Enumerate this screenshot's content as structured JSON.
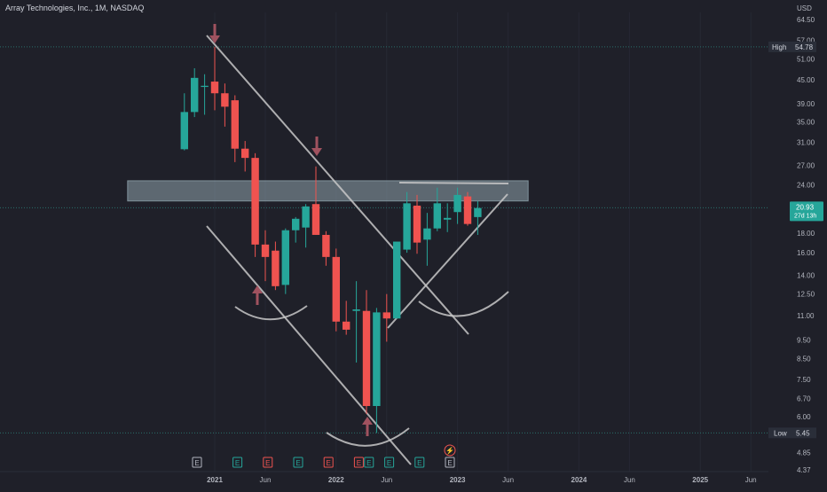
{
  "header": {
    "symbol_title": "Array Technologies, Inc., 1M, NASDAQ",
    "currency": "USD"
  },
  "colors": {
    "background": "#1f2029",
    "up": "#26a69a",
    "down": "#ef5350",
    "trendline": "#c8c8c8",
    "zone": "#8fa4ad",
    "arrow": "#a0525f",
    "price_tag": "#26a69a",
    "dashed_line": "#2a6d6a"
  },
  "chart_data": {
    "type": "candlestick",
    "scale": "log",
    "ylim": [
      4.37,
      64.5
    ],
    "y_ticks": [
      "64.50",
      "57.00",
      "51.00",
      "45.00",
      "39.00",
      "35.00",
      "31.00",
      "27.00",
      "24.00",
      "21.00",
      "18.00",
      "16.00",
      "14.00",
      "12.50",
      "11.00",
      "9.50",
      "8.50",
      "7.50",
      "6.70",
      "6.00",
      "5.40",
      "4.85",
      "4.37"
    ],
    "x_ticks": [
      {
        "label": "2021",
        "date": "2021-01"
      },
      {
        "label": "Jun",
        "date": "2021-06"
      },
      {
        "label": "2022",
        "date": "2022-01"
      },
      {
        "label": "Jun",
        "date": "2022-06"
      },
      {
        "label": "2023",
        "date": "2023-01"
      },
      {
        "label": "Jun",
        "date": "2023-06"
      },
      {
        "label": "2024",
        "date": "2024-01"
      },
      {
        "label": "Jun",
        "date": "2024-06"
      },
      {
        "label": "2025",
        "date": "2025-01"
      },
      {
        "label": "Jun",
        "date": "2025-06"
      }
    ],
    "candles": [
      {
        "date": "2020-10",
        "open": 29.7,
        "high": 41.5,
        "low": 29.5,
        "close": 37.1
      },
      {
        "date": "2020-11",
        "open": 37.1,
        "high": 48.2,
        "low": 36.0,
        "close": 45.5
      },
      {
        "date": "2020-12",
        "open": 43.1,
        "high": 46.5,
        "low": 36.5,
        "close": 43.4
      },
      {
        "date": "2021-01",
        "open": 44.5,
        "high": 54.78,
        "low": 37.5,
        "close": 41.5
      },
      {
        "date": "2021-02",
        "open": 41.5,
        "high": 44.0,
        "low": 34.0,
        "close": 38.3
      },
      {
        "date": "2021-03",
        "open": 39.8,
        "high": 41.0,
        "low": 27.5,
        "close": 29.8
      },
      {
        "date": "2021-04",
        "open": 29.8,
        "high": 31.2,
        "low": 26.0,
        "close": 28.2
      },
      {
        "date": "2021-05",
        "open": 28.2,
        "high": 29.0,
        "low": 15.6,
        "close": 16.8
      },
      {
        "date": "2021-06",
        "open": 16.8,
        "high": 18.3,
        "low": 13.5,
        "close": 15.6
      },
      {
        "date": "2021-07",
        "open": 16.2,
        "high": 17.1,
        "low": 12.8,
        "close": 13.1
      },
      {
        "date": "2021-08",
        "open": 13.2,
        "high": 18.5,
        "low": 12.5,
        "close": 18.3
      },
      {
        "date": "2021-09",
        "open": 18.3,
        "high": 19.8,
        "low": 17.0,
        "close": 19.6
      },
      {
        "date": "2021-10",
        "open": 18.6,
        "high": 21.4,
        "low": 16.5,
        "close": 21.1
      },
      {
        "date": "2021-11",
        "open": 21.4,
        "high": 26.8,
        "low": 17.8,
        "close": 17.8
      },
      {
        "date": "2021-12",
        "open": 17.8,
        "high": 18.2,
        "low": 14.8,
        "close": 15.6
      },
      {
        "date": "2022-01",
        "open": 15.6,
        "high": 16.4,
        "low": 10.0,
        "close": 10.6
      },
      {
        "date": "2022-02",
        "open": 10.6,
        "high": 12.0,
        "low": 9.8,
        "close": 10.1
      },
      {
        "date": "2022-03",
        "open": 11.3,
        "high": 13.5,
        "low": 8.3,
        "close": 11.4
      },
      {
        "date": "2022-04",
        "open": 11.3,
        "high": 12.8,
        "low": 6.1,
        "close": 6.4
      },
      {
        "date": "2022-05",
        "open": 6.4,
        "high": 11.5,
        "low": 5.45,
        "close": 11.2
      },
      {
        "date": "2022-06",
        "open": 11.2,
        "high": 12.5,
        "low": 9.4,
        "close": 10.8
      },
      {
        "date": "2022-07",
        "open": 10.8,
        "high": 17.0,
        "low": 10.8,
        "close": 17.1
      },
      {
        "date": "2022-08",
        "open": 16.3,
        "high": 23.0,
        "low": 16.0,
        "close": 21.5
      },
      {
        "date": "2022-09",
        "open": 21.2,
        "high": 22.6,
        "low": 15.9,
        "close": 17.0
      },
      {
        "date": "2022-10",
        "open": 17.3,
        "high": 20.3,
        "low": 14.8,
        "close": 18.5
      },
      {
        "date": "2022-11",
        "open": 18.5,
        "high": 23.6,
        "low": 18.2,
        "close": 21.5
      },
      {
        "date": "2022-12",
        "open": 19.5,
        "high": 21.5,
        "low": 18.1,
        "close": 19.7
      },
      {
        "date": "2023-01",
        "open": 20.4,
        "high": 23.6,
        "low": 19.0,
        "close": 22.6
      },
      {
        "date": "2023-02",
        "open": 22.4,
        "high": 23.0,
        "low": 18.8,
        "close": 19.0
      },
      {
        "date": "2023-03",
        "open": 19.8,
        "high": 21.8,
        "low": 17.8,
        "close": 20.9
      }
    ],
    "high": {
      "label": "High",
      "value": "54.78"
    },
    "low": {
      "label": "Low",
      "value": "5.45"
    },
    "last_price": {
      "value": "20.93",
      "countdown": "27d 13h",
      "value_num": 20.93
    },
    "resistance_zone": {
      "low": 21.8,
      "high": 24.6,
      "from": "2020-10",
      "to": "2023-05"
    },
    "event_markers": [
      {
        "date": "2021-01",
        "text": "E",
        "kind": "neutral"
      },
      {
        "date": "2021-05",
        "text": "E",
        "kind": "up"
      },
      {
        "date": "2021-08",
        "text": "E",
        "kind": "down"
      },
      {
        "date": "2021-11",
        "text": "E",
        "kind": "up"
      },
      {
        "date": "2022-02",
        "text": "E",
        "kind": "down"
      },
      {
        "date": "2022-05",
        "text": "E",
        "kind": "down"
      },
      {
        "date": "2022-06",
        "text": "E",
        "kind": "up"
      },
      {
        "date": "2022-08",
        "text": "E",
        "kind": "up"
      },
      {
        "date": "2022-11",
        "text": "E",
        "kind": "up"
      },
      {
        "date": "2023-02",
        "text": "E",
        "kind": "neutral"
      }
    ],
    "dividend_marker": {
      "date": "2023-02",
      "symbol": "⚡"
    }
  }
}
